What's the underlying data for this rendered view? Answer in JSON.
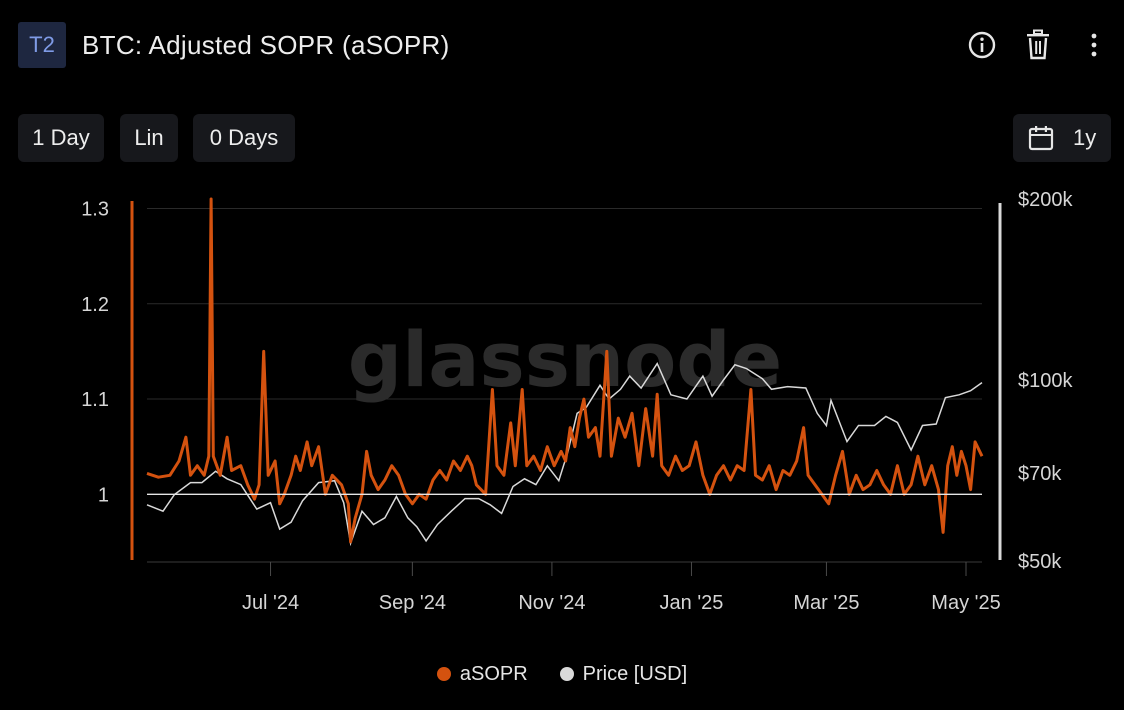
{
  "header": {
    "badge": "T2",
    "title": "BTC: Adjusted SOPR (aSOPR)"
  },
  "toolbar": {
    "resolution_label": "1 Day",
    "scale_label": "Lin",
    "sma_label": "0 Days",
    "range_label": "1y"
  },
  "watermark": "glassnode",
  "colors": {
    "asopr": "#d4520f",
    "price": "#d9d9d9",
    "background": "#000000",
    "grid": "#2a2a2a"
  },
  "chart_data": {
    "type": "line",
    "x_ticks": [
      "Jul '24",
      "Sep '24",
      "Nov '24",
      "Jan '25",
      "Mar '25",
      "May '25"
    ],
    "x_tick_dates": [
      "2024-07-01",
      "2024-09-01",
      "2024-11-01",
      "2025-01-01",
      "2025-03-01",
      "2025-05-01"
    ],
    "x_range": [
      "2024-05-08",
      "2025-05-08"
    ],
    "y_left": {
      "ticks": [
        "1.3",
        "1.2",
        "1.1",
        "1"
      ],
      "tick_values": [
        1.3,
        1.2,
        1.1,
        1.0
      ],
      "range": [
        0.93,
        1.31
      ],
      "baseline": 1.0
    },
    "y_right": {
      "ticks": [
        "$200k",
        "$100k",
        "$70k",
        "$50k"
      ],
      "tick_values": [
        200000,
        100000,
        70000,
        50000
      ],
      "range": [
        50000,
        200000
      ],
      "scale": "log"
    },
    "grid": true,
    "legend_position": "bottom",
    "series": [
      {
        "name": "aSOPR",
        "axis": "left",
        "points": [
          [
            "2024-05-08",
            1.022
          ],
          [
            "2024-05-13",
            1.018
          ],
          [
            "2024-05-18",
            1.02
          ],
          [
            "2024-05-22",
            1.035
          ],
          [
            "2024-05-25",
            1.06
          ],
          [
            "2024-05-27",
            1.02
          ],
          [
            "2024-05-30",
            1.03
          ],
          [
            "2024-06-02",
            1.02
          ],
          [
            "2024-06-04",
            1.04
          ],
          [
            "2024-06-05",
            1.31
          ],
          [
            "2024-06-06",
            1.04
          ],
          [
            "2024-06-09",
            1.02
          ],
          [
            "2024-06-12",
            1.06
          ],
          [
            "2024-06-14",
            1.025
          ],
          [
            "2024-06-18",
            1.03
          ],
          [
            "2024-06-21",
            1.01
          ],
          [
            "2024-06-24",
            0.995
          ],
          [
            "2024-06-26",
            1.01
          ],
          [
            "2024-06-28",
            1.15
          ],
          [
            "2024-06-30",
            1.02
          ],
          [
            "2024-07-03",
            1.035
          ],
          [
            "2024-07-05",
            0.99
          ],
          [
            "2024-07-07",
            1.0
          ],
          [
            "2024-07-10",
            1.02
          ],
          [
            "2024-07-12",
            1.04
          ],
          [
            "2024-07-14",
            1.025
          ],
          [
            "2024-07-17",
            1.055
          ],
          [
            "2024-07-19",
            1.03
          ],
          [
            "2024-07-22",
            1.05
          ],
          [
            "2024-07-25",
            1.0
          ],
          [
            "2024-07-28",
            1.02
          ],
          [
            "2024-08-01",
            1.01
          ],
          [
            "2024-08-04",
            0.99
          ],
          [
            "2024-08-05",
            0.95
          ],
          [
            "2024-08-07",
            0.975
          ],
          [
            "2024-08-10",
            1.0
          ],
          [
            "2024-08-12",
            1.045
          ],
          [
            "2024-08-14",
            1.02
          ],
          [
            "2024-08-17",
            1.005
          ],
          [
            "2024-08-20",
            1.015
          ],
          [
            "2024-08-23",
            1.03
          ],
          [
            "2024-08-26",
            1.02
          ],
          [
            "2024-08-29",
            1.0
          ],
          [
            "2024-09-01",
            0.99
          ],
          [
            "2024-09-04",
            1.0
          ],
          [
            "2024-09-07",
            0.995
          ],
          [
            "2024-09-10",
            1.015
          ],
          [
            "2024-09-13",
            1.025
          ],
          [
            "2024-09-16",
            1.015
          ],
          [
            "2024-09-19",
            1.035
          ],
          [
            "2024-09-22",
            1.025
          ],
          [
            "2024-09-25",
            1.04
          ],
          [
            "2024-09-27",
            1.03
          ],
          [
            "2024-09-29",
            1.01
          ],
          [
            "2024-10-01",
            1.005
          ],
          [
            "2024-10-03",
            1.0
          ],
          [
            "2024-10-06",
            1.11
          ],
          [
            "2024-10-08",
            1.03
          ],
          [
            "2024-10-11",
            1.02
          ],
          [
            "2024-10-14",
            1.075
          ],
          [
            "2024-10-16",
            1.03
          ],
          [
            "2024-10-19",
            1.11
          ],
          [
            "2024-10-21",
            1.03
          ],
          [
            "2024-10-24",
            1.04
          ],
          [
            "2024-10-27",
            1.025
          ],
          [
            "2024-10-30",
            1.05
          ],
          [
            "2024-11-02",
            1.03
          ],
          [
            "2024-11-05",
            1.045
          ],
          [
            "2024-11-07",
            1.035
          ],
          [
            "2024-11-09",
            1.07
          ],
          [
            "2024-11-11",
            1.05
          ],
          [
            "2024-11-13",
            1.08
          ],
          [
            "2024-11-15",
            1.1
          ],
          [
            "2024-11-17",
            1.06
          ],
          [
            "2024-11-20",
            1.07
          ],
          [
            "2024-11-22",
            1.04
          ],
          [
            "2024-11-25",
            1.15
          ],
          [
            "2024-11-27",
            1.04
          ],
          [
            "2024-11-30",
            1.08
          ],
          [
            "2024-12-03",
            1.06
          ],
          [
            "2024-12-06",
            1.085
          ],
          [
            "2024-12-09",
            1.03
          ],
          [
            "2024-12-12",
            1.09
          ],
          [
            "2024-12-15",
            1.04
          ],
          [
            "2024-12-17",
            1.105
          ],
          [
            "2024-12-19",
            1.03
          ],
          [
            "2024-12-22",
            1.02
          ],
          [
            "2024-12-25",
            1.04
          ],
          [
            "2024-12-28",
            1.025
          ],
          [
            "2024-12-31",
            1.03
          ],
          [
            "2025-01-03",
            1.055
          ],
          [
            "2025-01-06",
            1.02
          ],
          [
            "2025-01-09",
            1.0
          ],
          [
            "2025-01-12",
            1.02
          ],
          [
            "2025-01-15",
            1.03
          ],
          [
            "2025-01-18",
            1.015
          ],
          [
            "2025-01-21",
            1.03
          ],
          [
            "2025-01-24",
            1.025
          ],
          [
            "2025-01-27",
            1.11
          ],
          [
            "2025-01-29",
            1.02
          ],
          [
            "2025-02-01",
            1.015
          ],
          [
            "2025-02-04",
            1.03
          ],
          [
            "2025-02-07",
            1.005
          ],
          [
            "2025-02-10",
            1.025
          ],
          [
            "2025-02-13",
            1.02
          ],
          [
            "2025-02-16",
            1.035
          ],
          [
            "2025-02-19",
            1.07
          ],
          [
            "2025-02-21",
            1.02
          ],
          [
            "2025-02-24",
            1.01
          ],
          [
            "2025-02-27",
            1.0
          ],
          [
            "2025-03-02",
            0.99
          ],
          [
            "2025-03-05",
            1.02
          ],
          [
            "2025-03-08",
            1.045
          ],
          [
            "2025-03-11",
            1.0
          ],
          [
            "2025-03-14",
            1.02
          ],
          [
            "2025-03-17",
            1.005
          ],
          [
            "2025-03-20",
            1.01
          ],
          [
            "2025-03-23",
            1.025
          ],
          [
            "2025-03-26",
            1.01
          ],
          [
            "2025-03-29",
            1.0
          ],
          [
            "2025-04-01",
            1.03
          ],
          [
            "2025-04-04",
            1.0
          ],
          [
            "2025-04-07",
            1.01
          ],
          [
            "2025-04-10",
            1.04
          ],
          [
            "2025-04-13",
            1.01
          ],
          [
            "2025-04-16",
            1.03
          ],
          [
            "2025-04-19",
            1.005
          ],
          [
            "2025-04-21",
            0.96
          ],
          [
            "2025-04-23",
            1.03
          ],
          [
            "2025-04-25",
            1.05
          ],
          [
            "2025-04-27",
            1.02
          ],
          [
            "2025-04-29",
            1.045
          ],
          [
            "2025-05-01",
            1.03
          ],
          [
            "2025-05-03",
            1.005
          ],
          [
            "2025-05-05",
            1.055
          ],
          [
            "2025-05-08",
            1.04
          ]
        ]
      },
      {
        "name": "Price [USD]",
        "axis": "right",
        "points": [
          [
            "2024-05-08",
            62000
          ],
          [
            "2024-05-15",
            60500
          ],
          [
            "2024-05-20",
            64500
          ],
          [
            "2024-05-27",
            67500
          ],
          [
            "2024-06-01",
            67500
          ],
          [
            "2024-06-07",
            70500
          ],
          [
            "2024-06-12",
            68500
          ],
          [
            "2024-06-18",
            67000
          ],
          [
            "2024-06-25",
            61000
          ],
          [
            "2024-07-01",
            62500
          ],
          [
            "2024-07-05",
            56500
          ],
          [
            "2024-07-10",
            58000
          ],
          [
            "2024-07-15",
            63000
          ],
          [
            "2024-07-22",
            67500
          ],
          [
            "2024-07-29",
            68000
          ],
          [
            "2024-08-02",
            62500
          ],
          [
            "2024-08-05",
            53500
          ],
          [
            "2024-08-10",
            60500
          ],
          [
            "2024-08-15",
            57500
          ],
          [
            "2024-08-20",
            59000
          ],
          [
            "2024-08-25",
            64000
          ],
          [
            "2024-08-30",
            59000
          ],
          [
            "2024-09-03",
            57000
          ],
          [
            "2024-09-07",
            54000
          ],
          [
            "2024-09-12",
            57500
          ],
          [
            "2024-09-18",
            60500
          ],
          [
            "2024-09-24",
            63500
          ],
          [
            "2024-09-30",
            63500
          ],
          [
            "2024-10-05",
            62000
          ],
          [
            "2024-10-10",
            60000
          ],
          [
            "2024-10-15",
            66500
          ],
          [
            "2024-10-20",
            68500
          ],
          [
            "2024-10-25",
            67000
          ],
          [
            "2024-10-30",
            72000
          ],
          [
            "2024-11-04",
            68000
          ],
          [
            "2024-11-08",
            76000
          ],
          [
            "2024-11-12",
            88000
          ],
          [
            "2024-11-16",
            90000
          ],
          [
            "2024-11-22",
            98000
          ],
          [
            "2024-11-26",
            93000
          ],
          [
            "2024-12-01",
            96500
          ],
          [
            "2024-12-05",
            101500
          ],
          [
            "2024-12-10",
            97000
          ],
          [
            "2024-12-17",
            106500
          ],
          [
            "2024-12-23",
            94500
          ],
          [
            "2024-12-30",
            93000
          ],
          [
            "2025-01-06",
            101500
          ],
          [
            "2025-01-10",
            94000
          ],
          [
            "2025-01-15",
            100000
          ],
          [
            "2025-01-20",
            106000
          ],
          [
            "2025-01-25",
            104500
          ],
          [
            "2025-02-01",
            100500
          ],
          [
            "2025-02-05",
            96500
          ],
          [
            "2025-02-12",
            97500
          ],
          [
            "2025-02-20",
            97000
          ],
          [
            "2025-02-25",
            88000
          ],
          [
            "2025-03-01",
            84000
          ],
          [
            "2025-03-03",
            92500
          ],
          [
            "2025-03-10",
            79000
          ],
          [
            "2025-03-15",
            84000
          ],
          [
            "2025-03-22",
            84000
          ],
          [
            "2025-03-27",
            87000
          ],
          [
            "2025-04-01",
            85000
          ],
          [
            "2025-04-07",
            76500
          ],
          [
            "2025-04-12",
            84000
          ],
          [
            "2025-04-18",
            84500
          ],
          [
            "2025-04-22",
            93500
          ],
          [
            "2025-04-28",
            94500
          ],
          [
            "2025-05-03",
            96000
          ],
          [
            "2025-05-08",
            99000
          ]
        ]
      }
    ]
  }
}
